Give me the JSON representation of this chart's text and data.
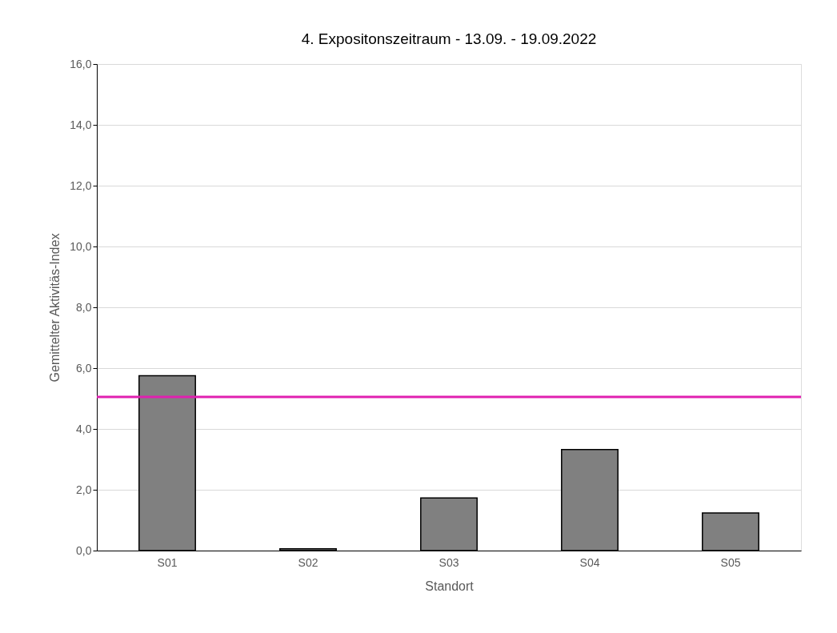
{
  "chart_data": {
    "type": "bar",
    "title": "4. Expositonszeitraum - 13.09. - 19.09.2022",
    "xlabel": "Standort",
    "ylabel": "Gemittelter Aktivitäs-Index",
    "categories": [
      "S01",
      "S02",
      "S03",
      "S04",
      "S05"
    ],
    "values": [
      5.75,
      0.06,
      1.73,
      3.32,
      1.24
    ],
    "color": "#808080",
    "ylim": [
      0,
      16
    ],
    "yticks": [
      {
        "value": 0,
        "label": "0,0"
      },
      {
        "value": 2,
        "label": "2,0"
      },
      {
        "value": 4,
        "label": "4,0"
      },
      {
        "value": 6,
        "label": "6,0"
      },
      {
        "value": 8,
        "label": "8,0"
      },
      {
        "value": 10,
        "label": "10,0"
      },
      {
        "value": 12,
        "label": "12,0"
      },
      {
        "value": 14,
        "label": "14,0"
      },
      {
        "value": 16,
        "label": "16,0"
      }
    ],
    "ref_lines": [
      {
        "axis": "y",
        "value": 5.05,
        "color": "#e020b0"
      }
    ],
    "grid": "y"
  }
}
